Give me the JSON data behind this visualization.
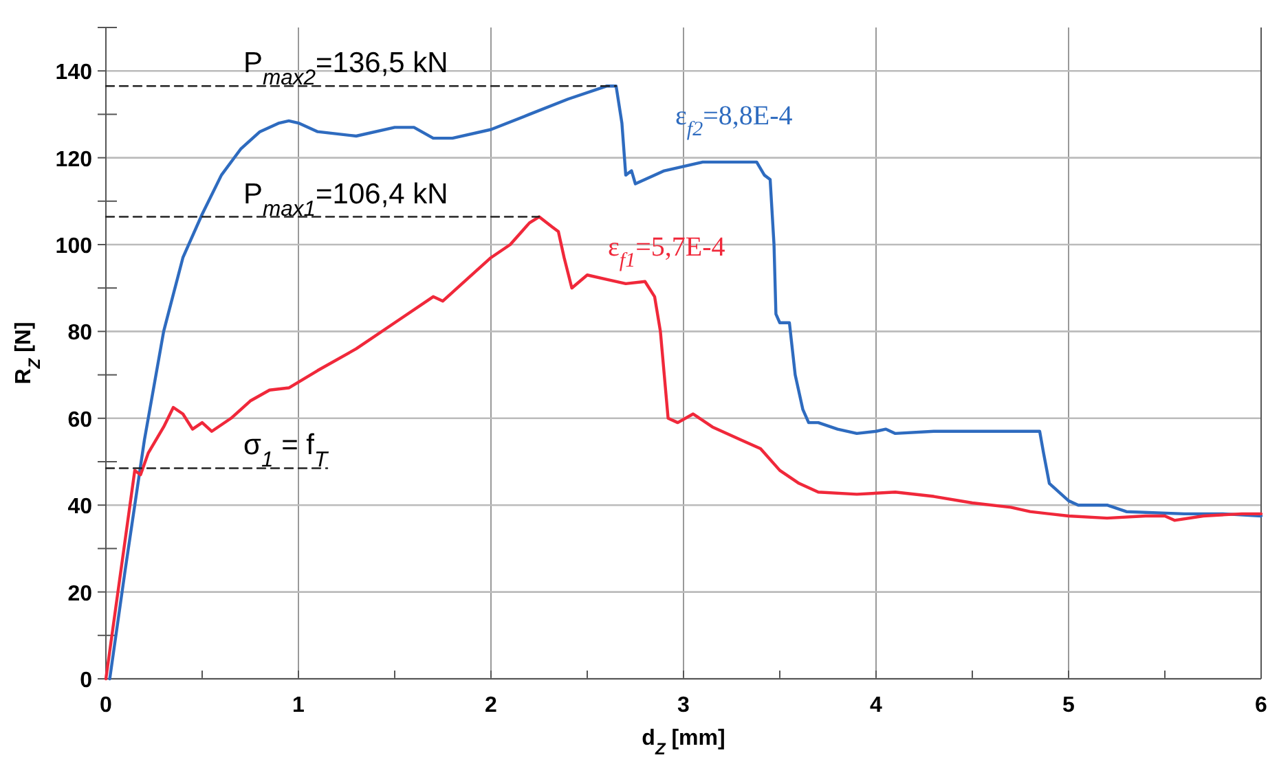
{
  "chart_data": {
    "type": "line",
    "xlabel": "d$_{Z}$ [mm]",
    "ylabel": "R$_{Z}$ [N]",
    "xlim": [
      0,
      6
    ],
    "ylim": [
      0,
      150
    ],
    "xticks": [
      0,
      {
        "value": 0.5,
        "label": null
      },
      1,
      {
        "value": 1.5,
        "label": null
      },
      2,
      {
        "value": 2.5,
        "label": null
      },
      3,
      {
        "value": 3.5,
        "label": null
      },
      4,
      {
        "value": 4.5,
        "label": null
      },
      5,
      {
        "value": 5.5,
        "label": null
      },
      6
    ],
    "yticks": [
      0,
      {
        "value": 10,
        "label": null
      },
      20,
      {
        "value": 30,
        "label": null
      },
      40,
      {
        "value": 50,
        "label": null
      },
      60,
      {
        "value": 70,
        "label": null
      },
      80,
      {
        "value": 90,
        "label": null
      },
      100,
      {
        "value": 110,
        "label": null
      },
      120,
      {
        "value": 130,
        "label": null
      },
      140,
      {
        "value": 150,
        "label": null
      }
    ],
    "grid": true,
    "marker": "none",
    "line_style": "solid",
    "series": [
      {
        "name": "ε$_{f2}$=8,8E-4",
        "color": "#2e6bbf",
        "x": [
          0.02,
          0.1,
          0.2,
          0.3,
          0.4,
          0.5,
          0.6,
          0.7,
          0.8,
          0.9,
          0.95,
          1.0,
          1.1,
          1.3,
          1.5,
          1.6,
          1.7,
          1.8,
          2.0,
          2.2,
          2.4,
          2.6,
          2.65,
          2.68,
          2.7,
          2.73,
          2.75,
          2.9,
          3.1,
          3.3,
          3.38,
          3.42,
          3.45,
          3.47,
          3.48,
          3.5,
          3.55,
          3.58,
          3.62,
          3.65,
          3.7,
          3.8,
          3.9,
          4.0,
          4.05,
          4.1,
          4.3,
          4.6,
          4.85,
          4.87,
          4.9,
          5.0,
          5.05,
          5.2,
          5.3,
          5.6,
          5.8,
          6.0
        ],
        "values": [
          0,
          25,
          55,
          80,
          97,
          107,
          116,
          122,
          126,
          128,
          128.5,
          128,
          126,
          125,
          127,
          127,
          124.5,
          124.5,
          126.5,
          130,
          133.5,
          136.5,
          136.5,
          128,
          116,
          117,
          114,
          117,
          119,
          119,
          119,
          116,
          115,
          100,
          84,
          82,
          82,
          70,
          62,
          59,
          59,
          57.5,
          56.5,
          57,
          57.5,
          56.5,
          57,
          57,
          57,
          52,
          45,
          41,
          40,
          40,
          38.5,
          38,
          38,
          37.5
        ]
      },
      {
        "name": "ε$_{f1}$=5,7E-4",
        "color": "#f0283a",
        "x": [
          0,
          0.15,
          0.18,
          0.22,
          0.3,
          0.35,
          0.4,
          0.45,
          0.5,
          0.55,
          0.65,
          0.75,
          0.85,
          0.95,
          1.1,
          1.3,
          1.5,
          1.7,
          1.75,
          1.9,
          2.0,
          2.1,
          2.2,
          2.25,
          2.32,
          2.35,
          2.38,
          2.42,
          2.5,
          2.6,
          2.7,
          2.8,
          2.85,
          2.88,
          2.9,
          2.92,
          2.97,
          3.05,
          3.15,
          3.3,
          3.4,
          3.5,
          3.6,
          3.7,
          3.9,
          4.1,
          4.3,
          4.5,
          4.7,
          4.8,
          5.0,
          5.2,
          5.4,
          5.5,
          5.55,
          5.7,
          5.9,
          6.0
        ],
        "values": [
          0,
          48,
          47,
          52,
          58,
          62.5,
          61,
          57.5,
          59,
          57,
          60,
          64,
          66.5,
          67,
          71,
          76,
          82,
          88,
          87,
          93,
          97,
          100,
          105,
          106.4,
          104,
          103,
          97,
          90,
          93,
          92,
          91,
          91.5,
          88,
          80,
          70,
          60,
          59,
          61,
          58,
          55,
          53,
          48,
          45,
          43,
          42.5,
          43,
          42,
          40.5,
          39.5,
          38.5,
          37.5,
          37,
          37.5,
          37.5,
          36.5,
          37.5,
          38,
          38
        ]
      },
      {
        "color": "#222222",
        "line_style": "dashed",
        "x": [
          0,
          2.65
        ],
        "values": [
          136.5,
          136.5
        ]
      },
      {
        "color": "#222222",
        "line_style": "dashed",
        "x": [
          0,
          2.25
        ],
        "values": [
          106.4,
          106.4
        ]
      },
      {
        "color": "#222222",
        "line_style": "dashed",
        "x": [
          0,
          1.15
        ],
        "values": [
          48.5,
          48.5
        ]
      }
    ],
    "annotations": [
      "P$_{max2}$=136,5 kN",
      "P$_{max1}$=106,4 kN",
      "σ$_{1}$ = f$_{T}$"
    ]
  }
}
